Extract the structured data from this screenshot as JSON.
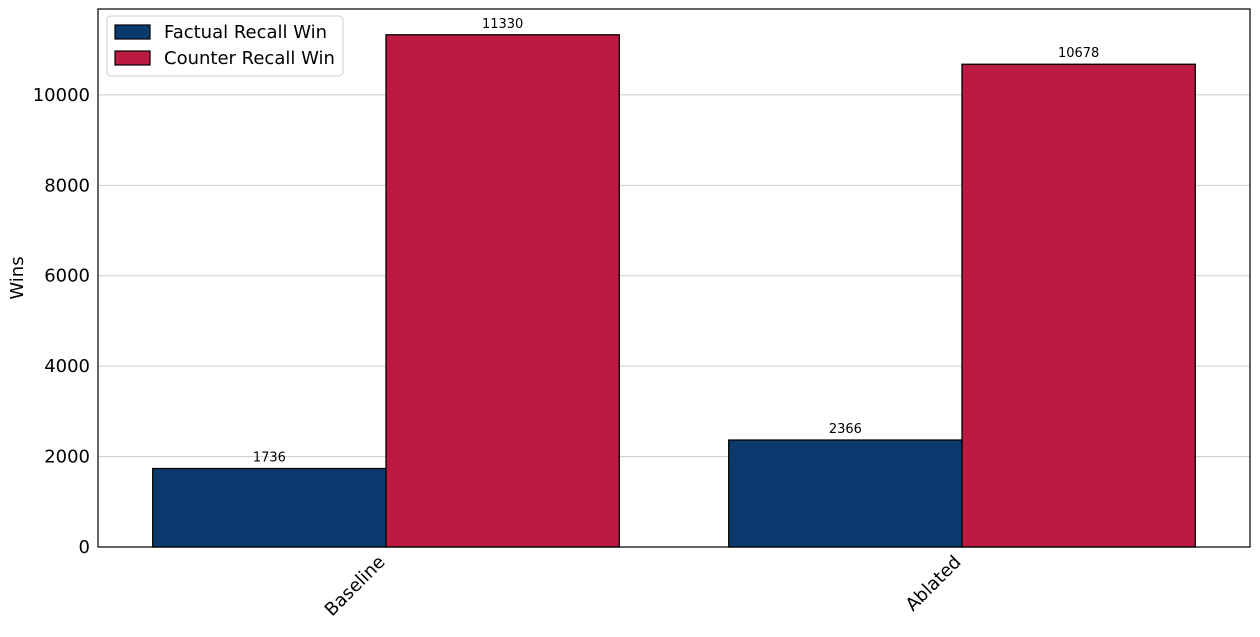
{
  "chart_data": {
    "type": "bar",
    "title": "",
    "xlabel": "",
    "ylabel": "Wins",
    "categories": [
      "Baseline",
      "Ablated"
    ],
    "series": [
      {
        "name": "Factual Recall Win",
        "values": [
          1736,
          2366
        ],
        "color": "#0b3a6e"
      },
      {
        "name": "Counter Recall Win",
        "values": [
          11330,
          10678
        ],
        "color": "#bc1b41"
      }
    ],
    "ylim": [
      0,
      11900
    ],
    "yticks": [
      0,
      2000,
      4000,
      6000,
      8000,
      10000
    ],
    "grid": "horizontal",
    "legend_position": "top-left",
    "data_labels": true
  }
}
